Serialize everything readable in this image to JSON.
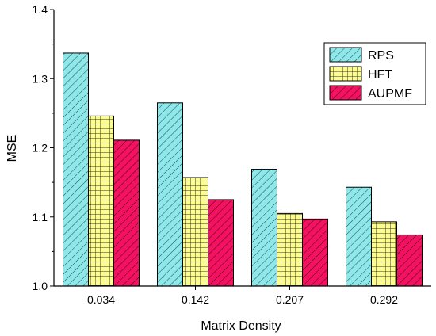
{
  "chart_data": {
    "type": "bar",
    "xlabel": "Matrix Density",
    "ylabel": "MSE",
    "categories": [
      "0.034",
      "0.142",
      "0.207",
      "0.292"
    ],
    "series": [
      {
        "name": "RPS",
        "values": [
          1.337,
          1.265,
          1.169,
          1.143
        ],
        "color": "#8ee8ea",
        "pattern": "diagonal"
      },
      {
        "name": "HFT",
        "values": [
          1.246,
          1.157,
          1.105,
          1.093
        ],
        "color": "#fdfd8c",
        "pattern": "crosshatch"
      },
      {
        "name": "AUPMF",
        "values": [
          1.211,
          1.125,
          1.097,
          1.074
        ],
        "color": "#f2125f",
        "pattern": "diagonal"
      }
    ],
    "ylim": [
      1.0,
      1.4
    ],
    "yticks": [
      "1.0",
      "1.1",
      "1.2",
      "1.3",
      "1.4"
    ],
    "grid": false,
    "legend_position": "top-right"
  }
}
